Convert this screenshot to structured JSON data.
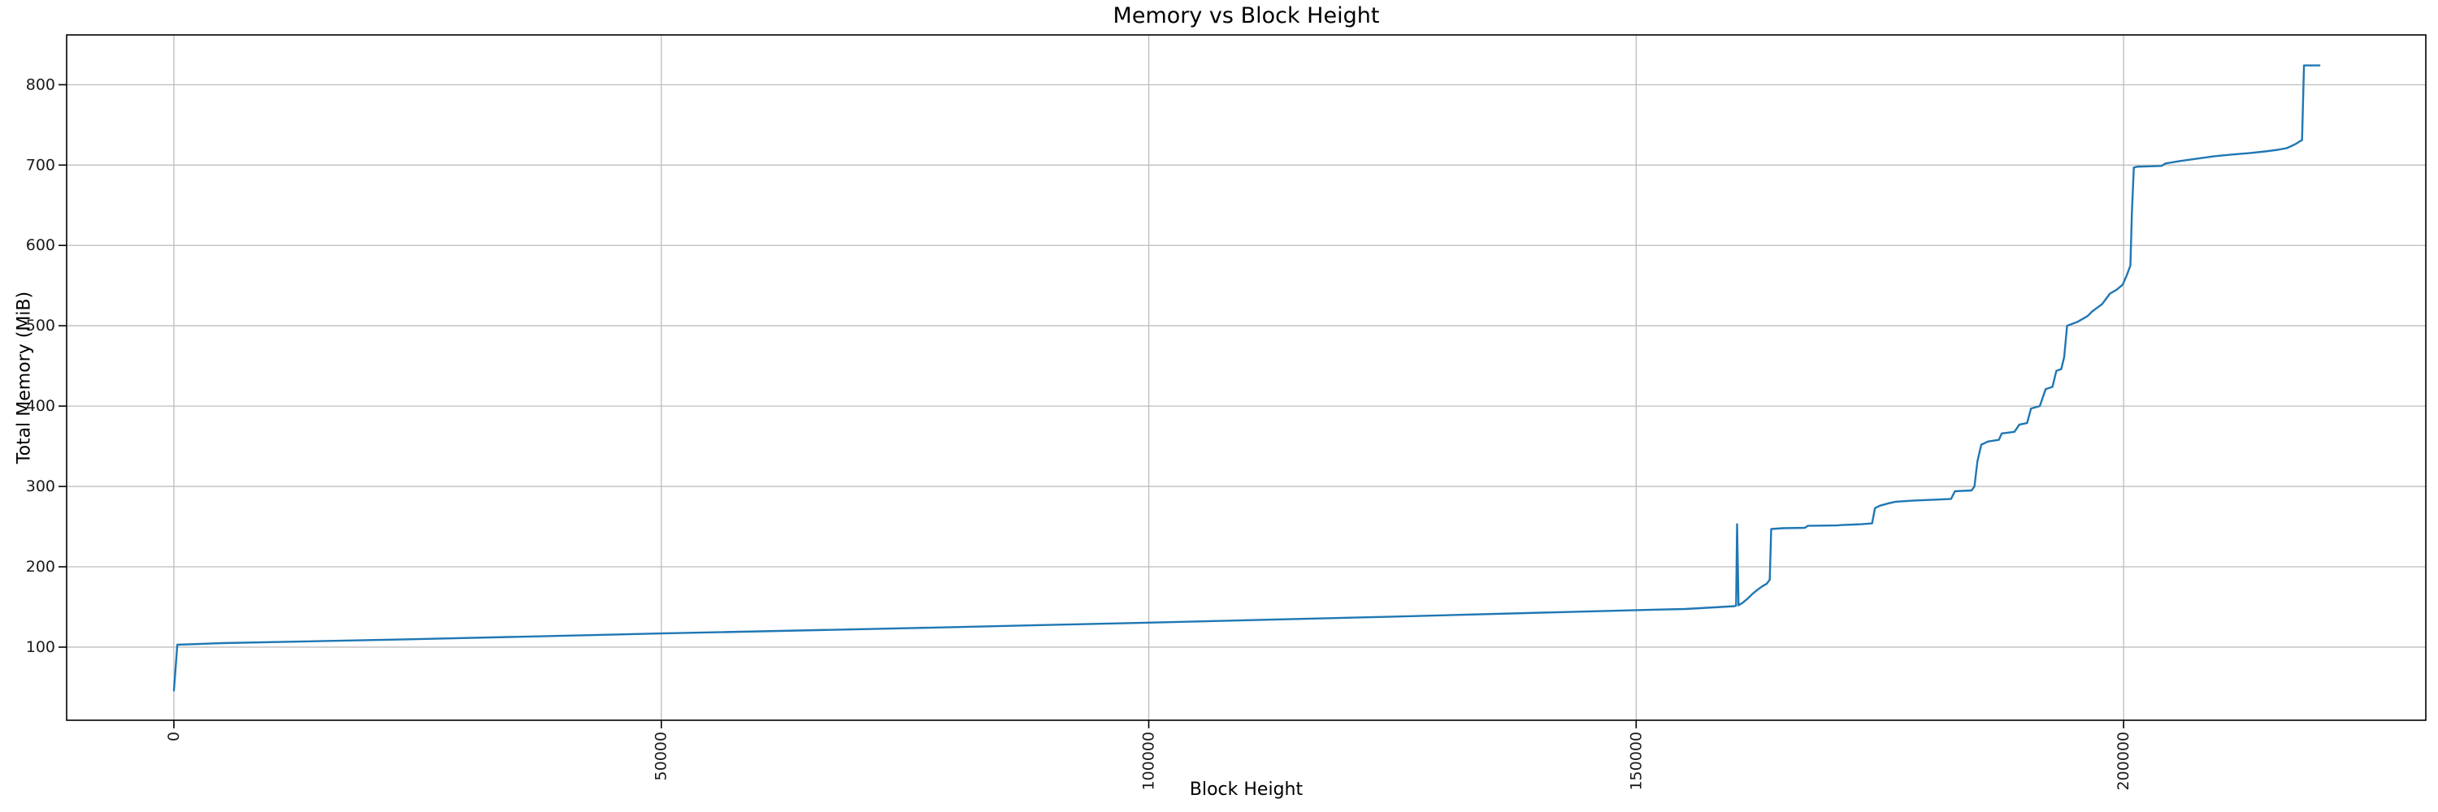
{
  "chart_data": {
    "type": "line",
    "title": "Memory vs Block Height",
    "xlabel": "Block Height",
    "ylabel": "Total Memory (MiB)",
    "xlim": [
      -11000,
      231000
    ],
    "ylim": [
      9,
      862
    ],
    "x_ticks": [
      0,
      50000,
      100000,
      150000,
      200000
    ],
    "y_ticks": [
      100,
      200,
      300,
      400,
      500,
      600,
      700,
      800
    ],
    "x_tick_rotation": 90,
    "grid": true,
    "legend": null,
    "series": [
      {
        "name": "Total Memory",
        "color": "#1f77b4",
        "points": [
          [
            0,
            46
          ],
          [
            350,
            103
          ],
          [
            5000,
            105
          ],
          [
            25000,
            110
          ],
          [
            50000,
            117
          ],
          [
            75000,
            123.5
          ],
          [
            100000,
            130.5
          ],
          [
            125000,
            138
          ],
          [
            150000,
            146
          ],
          [
            155000,
            147.5
          ],
          [
            158000,
            149.5
          ],
          [
            160100,
            151
          ],
          [
            160250,
            151.5
          ],
          [
            160350,
            253
          ],
          [
            160500,
            152
          ],
          [
            160900,
            155
          ],
          [
            161400,
            160
          ],
          [
            161900,
            166
          ],
          [
            162400,
            171
          ],
          [
            162900,
            175.5
          ],
          [
            163400,
            179
          ],
          [
            163700,
            184
          ],
          [
            163850,
            247
          ],
          [
            165000,
            248
          ],
          [
            167300,
            248.5
          ],
          [
            167600,
            251
          ],
          [
            170600,
            251.5
          ],
          [
            171100,
            252
          ],
          [
            173100,
            253
          ],
          [
            174200,
            254
          ],
          [
            174500,
            273
          ],
          [
            175000,
            276
          ],
          [
            175900,
            279
          ],
          [
            176600,
            281
          ],
          [
            178500,
            282.5
          ],
          [
            180500,
            283.5
          ],
          [
            182300,
            284.5
          ],
          [
            182700,
            294
          ],
          [
            184400,
            295
          ],
          [
            184700,
            300
          ],
          [
            185000,
            331
          ],
          [
            185400,
            352
          ],
          [
            186100,
            356
          ],
          [
            187200,
            358
          ],
          [
            187500,
            366
          ],
          [
            188800,
            368
          ],
          [
            189300,
            377
          ],
          [
            190100,
            379
          ],
          [
            190500,
            397
          ],
          [
            191400,
            400
          ],
          [
            192000,
            421
          ],
          [
            192700,
            424
          ],
          [
            193100,
            444
          ],
          [
            193600,
            446
          ],
          [
            193900,
            461
          ],
          [
            194200,
            500
          ],
          [
            195300,
            505
          ],
          [
            196300,
            512
          ],
          [
            196800,
            518
          ],
          [
            197800,
            527
          ],
          [
            198600,
            540
          ],
          [
            199300,
            545
          ],
          [
            199900,
            551
          ],
          [
            200300,
            562
          ],
          [
            200700,
            575
          ],
          [
            200850,
            640
          ],
          [
            201050,
            697
          ],
          [
            201400,
            698
          ],
          [
            203900,
            699
          ],
          [
            204300,
            702
          ],
          [
            205800,
            705
          ],
          [
            207500,
            708
          ],
          [
            209300,
            711
          ],
          [
            211000,
            713
          ],
          [
            213000,
            715
          ],
          [
            214500,
            717
          ],
          [
            215800,
            719
          ],
          [
            216700,
            721
          ],
          [
            217100,
            723
          ],
          [
            217600,
            726
          ],
          [
            218000,
            729
          ],
          [
            218300,
            731
          ],
          [
            218500,
            824
          ],
          [
            220100,
            824
          ]
        ]
      }
    ]
  },
  "style": {
    "background": "#ffffff",
    "grid_color": "#bdbdbd",
    "spine_color": "#000000",
    "tick_color": "#000000",
    "tick_label_color": "#1a1a1a",
    "line_color": "#1f77b4"
  }
}
